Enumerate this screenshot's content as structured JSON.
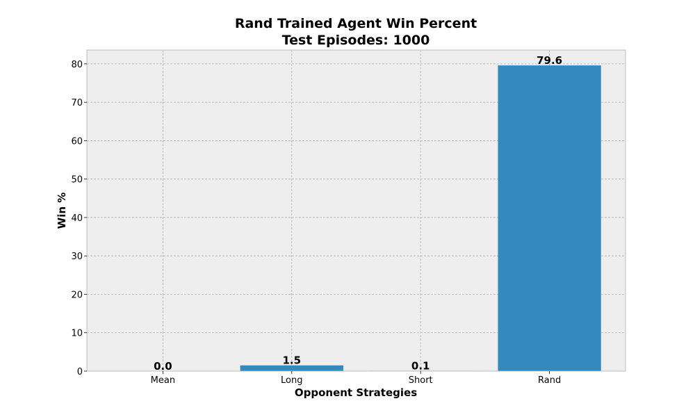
{
  "chart_data": {
    "type": "bar",
    "title": "Rand Trained Agent Win Percent",
    "subtitle": "Test Episodes: 1000",
    "xlabel": "Opponent Strategies",
    "ylabel": "Win %",
    "categories": [
      "Mean",
      "Long",
      "Short",
      "Rand"
    ],
    "values": [
      0.0,
      1.5,
      0.1,
      79.6
    ],
    "data_labels": [
      "0.0",
      "1.5",
      "0.1",
      "79.6"
    ],
    "ylim": [
      0,
      83.6
    ],
    "yticks": [
      0,
      10,
      20,
      30,
      40,
      50,
      60,
      70,
      80
    ],
    "grid": true,
    "colors": {
      "bar": "#348abd",
      "plot_background": "#eeeeee",
      "plot_border": "#bcbcbc",
      "grid": "#b0b0b0"
    }
  }
}
